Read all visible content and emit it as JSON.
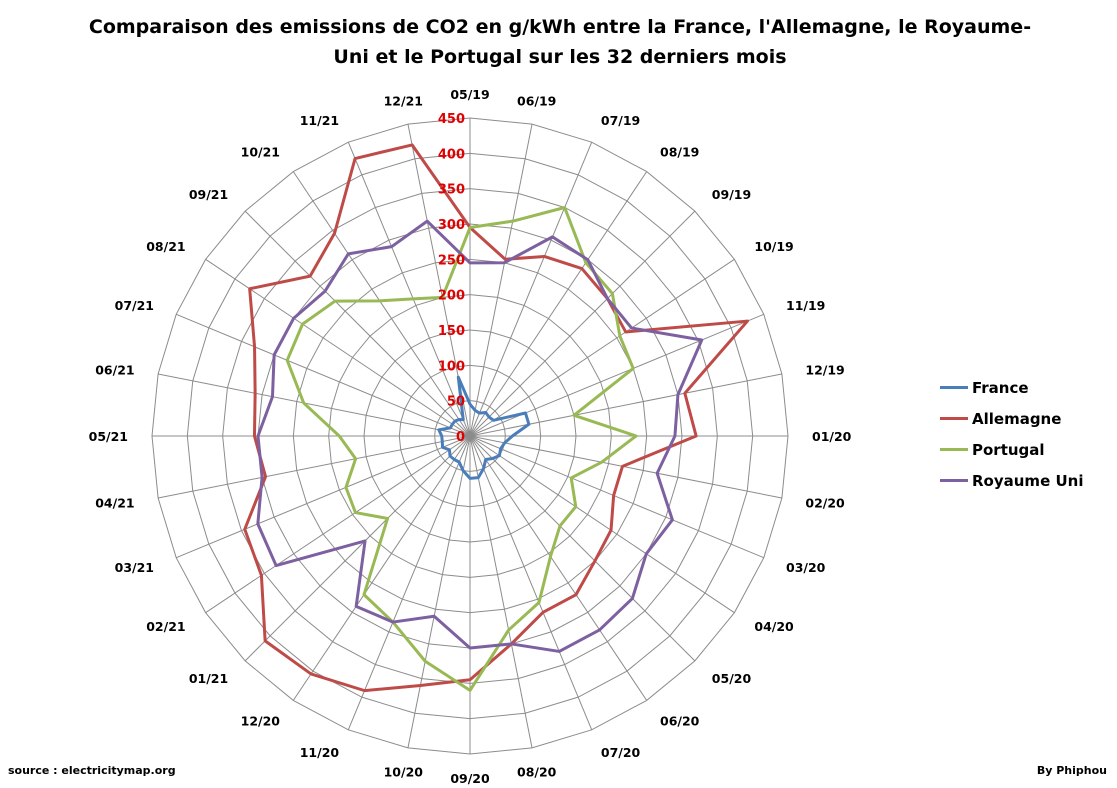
{
  "chart_data": {
    "type": "radar",
    "title_line1": "Comparaison des emissions de CO2 en g/kWh entre la France, l'Allemagne, le Royaume-",
    "title_line2": "Uni et le Portugal sur les 32 derniers mois",
    "categories": [
      "05/19",
      "06/19",
      "07/19",
      "08/19",
      "09/19",
      "10/19",
      "11/19",
      "12/19",
      "01/20",
      "02/20",
      "03/20",
      "04/20",
      "05/20",
      "06/20",
      "07/20",
      "08/20",
      "09/20",
      "10/20",
      "11/20",
      "12/20",
      "01/21",
      "02/21",
      "03/21",
      "04/21",
      "05/21",
      "06/21",
      "07/21",
      "08/21",
      "09/21",
      "10/21",
      "11/21",
      "12/21"
    ],
    "ticks": [
      "0",
      "50",
      "100",
      "150",
      "200",
      "250",
      "300",
      "350",
      "400",
      "450"
    ],
    "rmax": 450,
    "grid": true,
    "legend_position": "right",
    "series": [
      {
        "name": "France",
        "color": "#4a7ebb",
        "values": [
          45,
          37,
          35,
          40,
          38,
          40,
          85,
          85,
          60,
          50,
          47,
          50,
          45,
          40,
          50,
          60,
          60,
          50,
          40,
          40,
          40,
          35,
          42,
          40,
          40,
          45,
          30,
          30,
          30,
          28,
          25,
          85
        ]
      },
      {
        "name": "Allemagne",
        "color": "#be4b48",
        "values": [
          295,
          255,
          275,
          285,
          275,
          265,
          425,
          310,
          320,
          220,
          220,
          240,
          250,
          270,
          270,
          300,
          345,
          360,
          390,
          405,
          410,
          355,
          345,
          295,
          305,
          310,
          330,
          375,
          320,
          345,
          425,
          420
        ]
      },
      {
        "name": "Portugal",
        "color": "#98b954",
        "values": [
          295,
          310,
          350,
          295,
          285,
          255,
          250,
          150,
          235,
          190,
          155,
          180,
          180,
          205,
          255,
          280,
          360,
          325,
          285,
          270,
          165,
          195,
          190,
          165,
          185,
          240,
          280,
          285,
          270,
          230,
          210,
          200
        ]
      },
      {
        "name": "Royaume Uni",
        "color": "#7d60a0",
        "values": [
          245,
          250,
          305,
          300,
          275,
          275,
          355,
          300,
          290,
          270,
          310,
          300,
          325,
          330,
          330,
          300,
          300,
          260,
          285,
          290,
          210,
          330,
          325,
          300,
          300,
          285,
          300,
          300,
          290,
          310,
          290,
          310
        ]
      }
    ]
  },
  "legend": {
    "items": [
      {
        "name": "France",
        "color": "#4a7ebb"
      },
      {
        "name": "Allemagne",
        "color": "#be4b48"
      },
      {
        "name": "Portugal",
        "color": "#98b954"
      },
      {
        "name": "Royaume Uni",
        "color": "#7d60a0"
      }
    ]
  },
  "footer": {
    "source": "source : electricitymap.org",
    "author": "By Phiphou"
  }
}
